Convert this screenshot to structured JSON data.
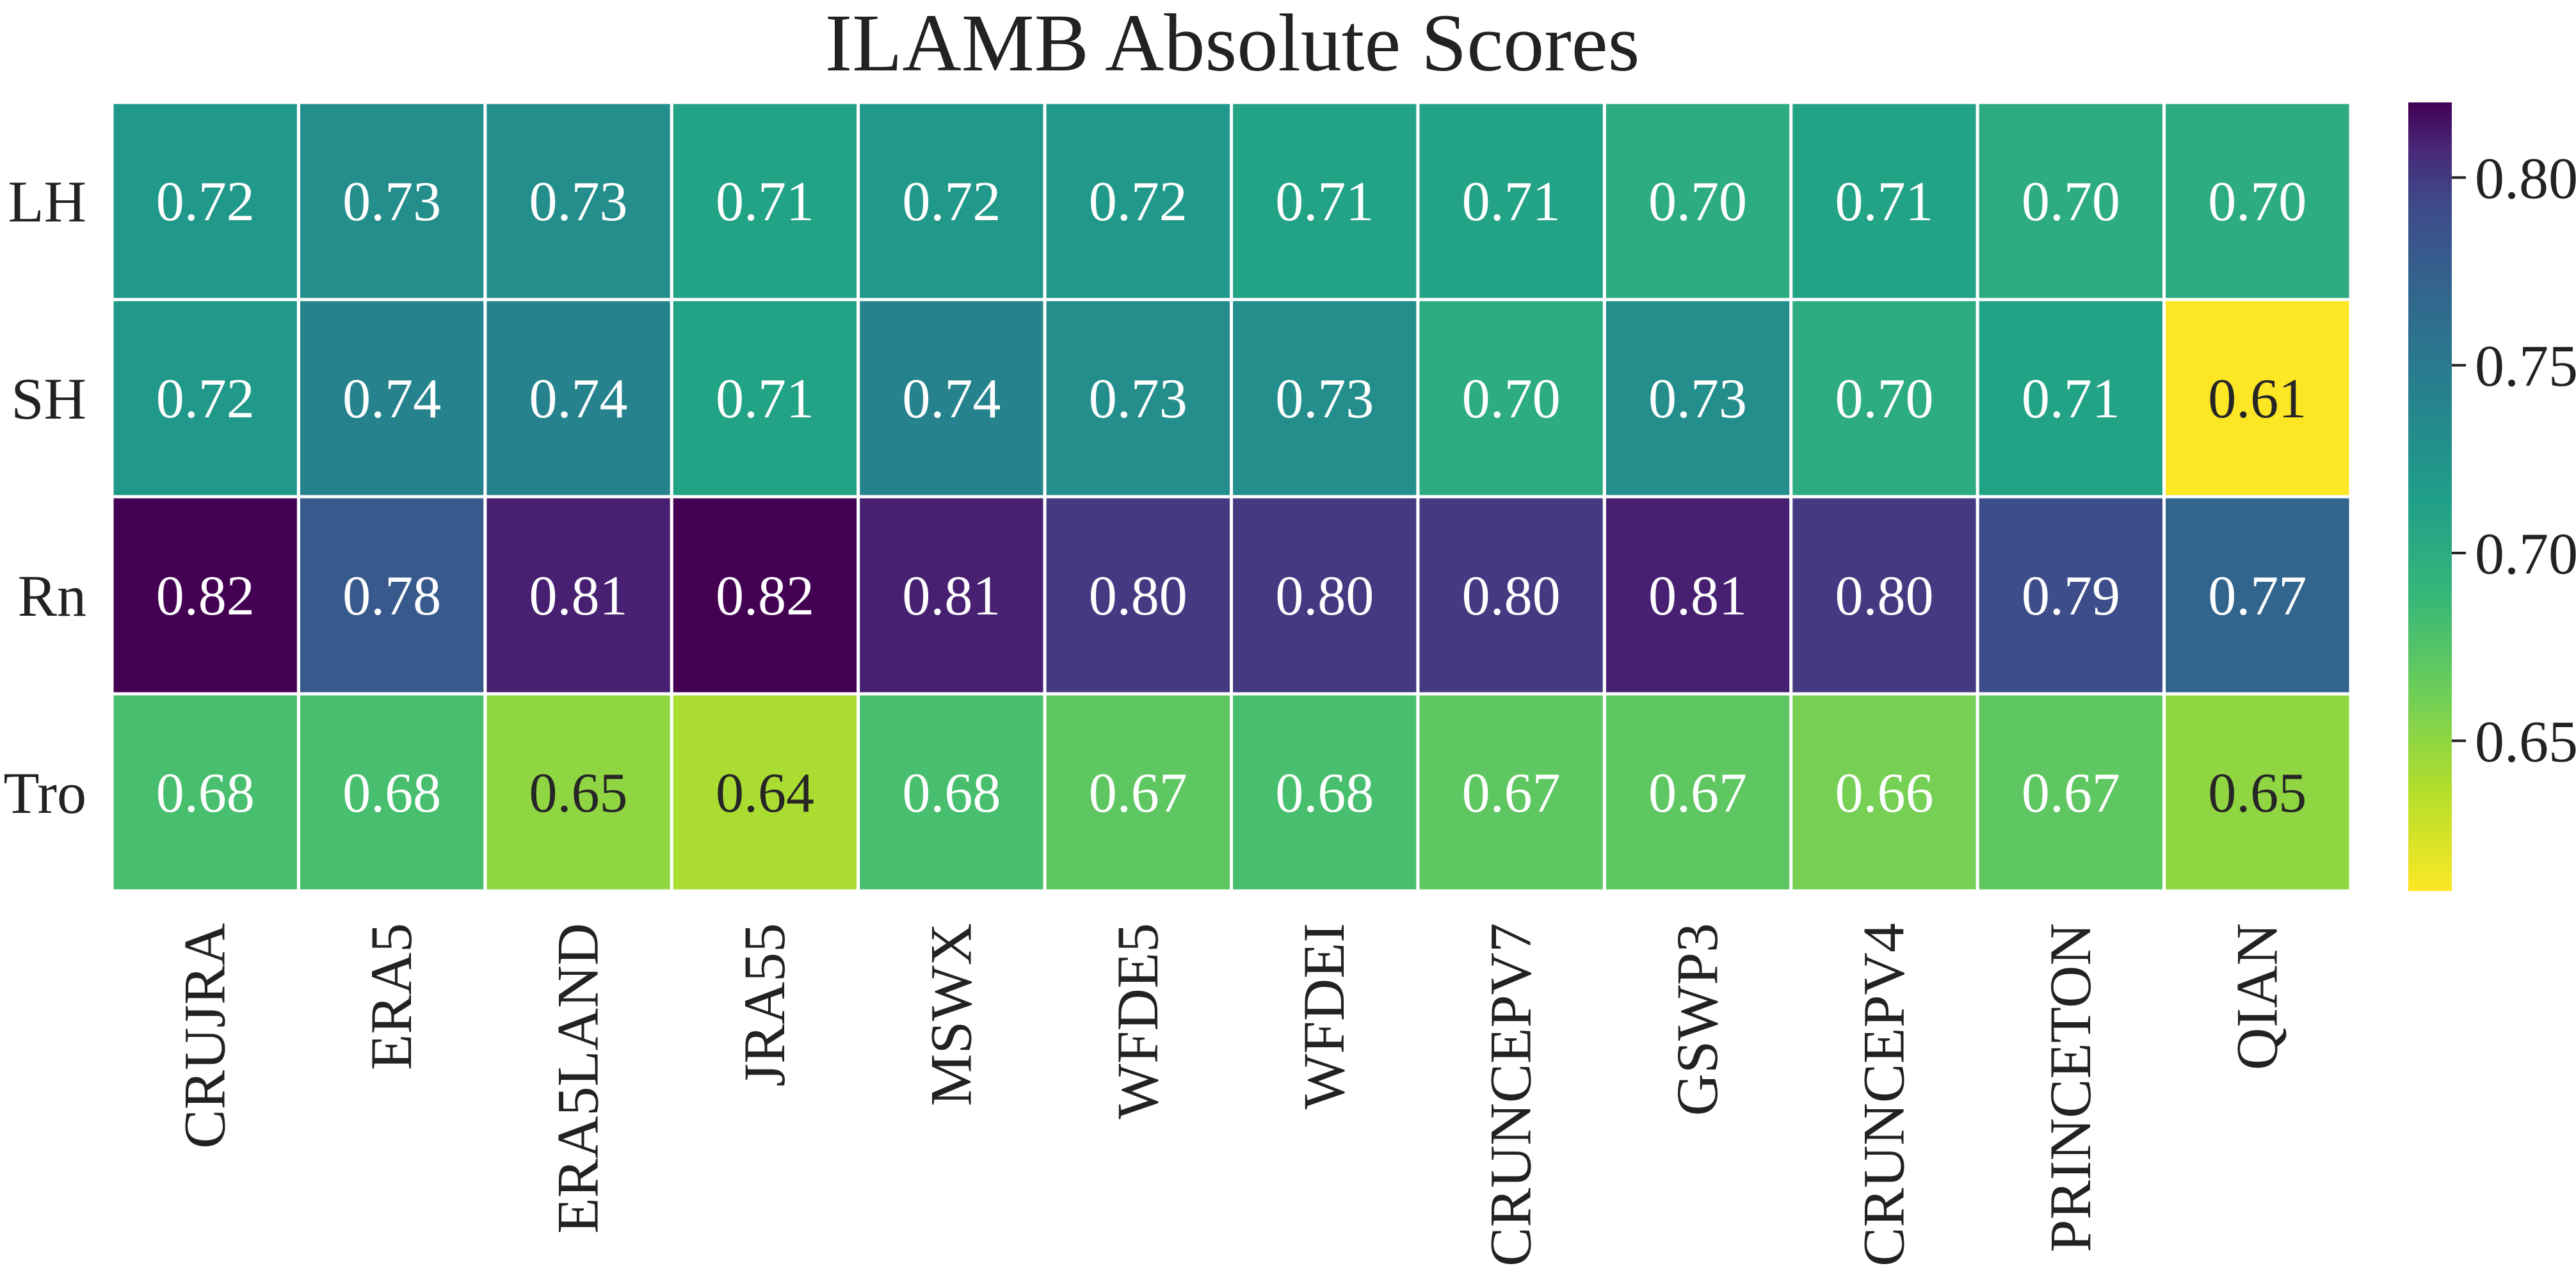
{
  "chart_data": {
    "type": "heatmap",
    "title": "ILAMB Absolute Scores",
    "xlabel": "",
    "ylabel": "",
    "rows": [
      "LH",
      "SH",
      "Rn",
      "Tro"
    ],
    "columns": [
      "CRUJRA",
      "ERA5",
      "ERA5LAND",
      "JRA55",
      "MSWX",
      "WFDE5",
      "WFDEI",
      "CRUNCEPV7",
      "GSWP3",
      "CRUNCEPV4",
      "PRINCETON",
      "QIAN"
    ],
    "values": [
      [
        0.72,
        0.73,
        0.73,
        0.71,
        0.72,
        0.72,
        0.71,
        0.71,
        0.7,
        0.71,
        0.7,
        0.7
      ],
      [
        0.72,
        0.74,
        0.74,
        0.71,
        0.74,
        0.73,
        0.73,
        0.7,
        0.73,
        0.7,
        0.71,
        0.61
      ],
      [
        0.82,
        0.78,
        0.81,
        0.82,
        0.81,
        0.8,
        0.8,
        0.8,
        0.81,
        0.8,
        0.79,
        0.77
      ],
      [
        0.68,
        0.68,
        0.65,
        0.64,
        0.68,
        0.67,
        0.68,
        0.67,
        0.67,
        0.66,
        0.67,
        0.65
      ]
    ],
    "colorscale": "viridis_r",
    "zlim": [
      0.61,
      0.82
    ],
    "colorbar_ticks": [
      0.65,
      0.7,
      0.75,
      0.8
    ],
    "colorbar_tick_labels": [
      "0.65",
      "0.70",
      "0.75",
      "0.80"
    ],
    "cell_border_color": "#ffffff",
    "grid": false,
    "legend": "colorbar-right"
  }
}
